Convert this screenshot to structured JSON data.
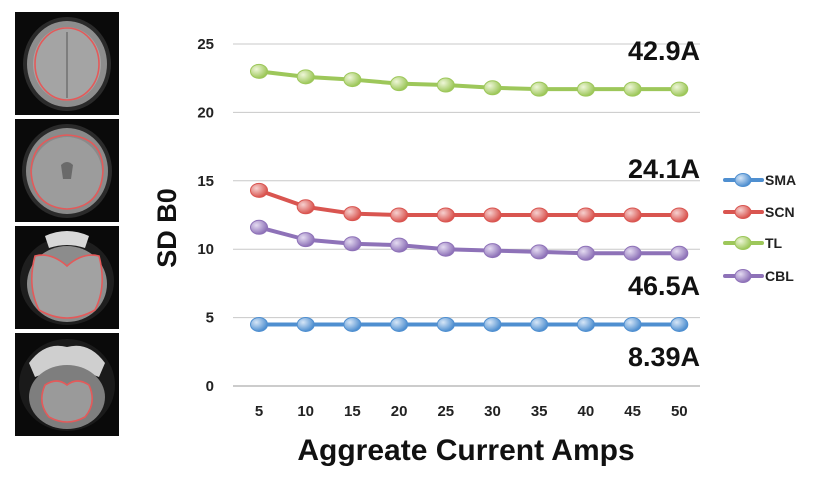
{
  "scan_panels": [
    {
      "label": "SMA region axial scan"
    },
    {
      "label": "SCN region axial scan"
    },
    {
      "label": "TL region axial scan"
    },
    {
      "label": "CBL region axial scan"
    }
  ],
  "chart_data": {
    "type": "line",
    "title": "",
    "xlabel": "Aggreate Current Amps",
    "ylabel": "SD B0",
    "categories": [
      5,
      10,
      15,
      20,
      25,
      30,
      35,
      40,
      45,
      50
    ],
    "ylim": [
      0,
      25
    ],
    "yticks": [
      0,
      5,
      10,
      15,
      20,
      25
    ],
    "grid": true,
    "legend_position": "right",
    "series": [
      {
        "name": "SMA",
        "color": "#4f8fd0",
        "values": [
          4.5,
          4.5,
          4.5,
          4.5,
          4.5,
          4.5,
          4.5,
          4.5,
          4.5,
          4.5
        ]
      },
      {
        "name": "SCN",
        "color": "#d95550",
        "values": [
          14.3,
          13.1,
          12.6,
          12.5,
          12.5,
          12.5,
          12.5,
          12.5,
          12.5,
          12.5
        ]
      },
      {
        "name": "TL",
        "color": "#9dc75a",
        "values": [
          23.0,
          22.6,
          22.4,
          22.1,
          22.0,
          21.8,
          21.7,
          21.7,
          21.7,
          21.7
        ]
      },
      {
        "name": "CBL",
        "color": "#8e72b8",
        "values": [
          11.6,
          10.7,
          10.4,
          10.3,
          10.0,
          9.9,
          9.8,
          9.7,
          9.7,
          9.7
        ]
      }
    ],
    "annotations": [
      {
        "text": "42.9A",
        "series": "TL"
      },
      {
        "text": "24.1A",
        "series": "SCN"
      },
      {
        "text": "46.5A",
        "series": "CBL"
      },
      {
        "text": "8.39A",
        "series": "SMA"
      }
    ]
  }
}
